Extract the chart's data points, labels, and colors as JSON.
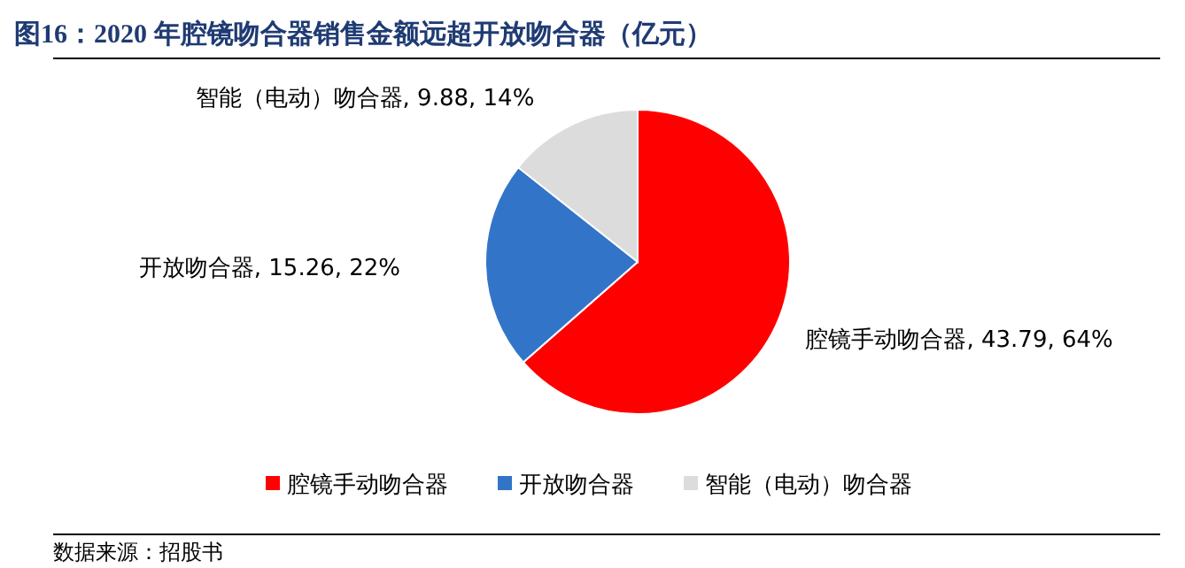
{
  "chart_data": {
    "type": "pie",
    "title": "图16：2020 年腔镜吻合器销售金额远超开放吻合器（亿元）",
    "categories": [
      "腔镜手动吻合器",
      "开放吻合器",
      "智能（电动）吻合器"
    ],
    "values": [
      43.79,
      15.26,
      9.88
    ],
    "colors": [
      "#ff0000",
      "#3275c8",
      "#dcdcdc"
    ],
    "value_labels": [
      "腔镜手动吻合器, 43.79, 64%",
      "开放吻合器, 15.26, 22%",
      "智能（电动）吻合器, 9.88, 14%"
    ],
    "legend": "bottom",
    "annotations": [
      "数据来源：招股书"
    ]
  }
}
